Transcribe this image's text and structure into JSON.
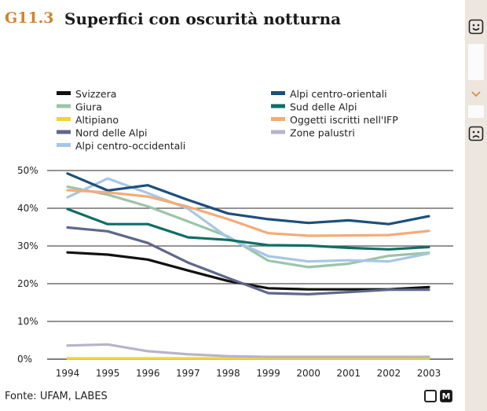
{
  "header": {
    "figure_id": "G11.3",
    "title": "Superfici con oscurità notturna"
  },
  "source": "Fonte: UFAM, LABES",
  "footer_icons": {
    "m_label": "M"
  },
  "side_panel": {
    "top_icon": "smiley-happy-icon",
    "mid_icon": "chevron-down-icon",
    "bottom_icon": "smiley-sad-icon"
  },
  "chart_data": {
    "type": "line",
    "x": [
      "1994",
      "1995",
      "1996",
      "1997",
      "1998",
      "1999",
      "2000",
      "2001",
      "2002",
      "2003"
    ],
    "ylim": [
      0,
      50
    ],
    "yticks": [
      "0%",
      "10%",
      "20%",
      "30%",
      "40%",
      "50%"
    ],
    "grid": true,
    "legend_placement": "top",
    "series": [
      {
        "name": "Svizzera",
        "color": "#111111",
        "values": [
          28.3,
          27.7,
          26.4,
          23.5,
          20.7,
          18.8,
          18.5,
          18.5,
          18.5,
          19.1
        ]
      },
      {
        "name": "Giura",
        "color": "#9cc4a8",
        "values": [
          45.7,
          43.6,
          40.5,
          36.5,
          32.5,
          26.1,
          24.4,
          25.3,
          27.4,
          28.2
        ]
      },
      {
        "name": "Altipiano",
        "color": "#f2d23a",
        "values": [
          0.2,
          0.2,
          0.2,
          0.2,
          0.2,
          0.2,
          0.2,
          0.2,
          0.2,
          0.2
        ]
      },
      {
        "name": "Nord delle Alpi",
        "color": "#5f6889",
        "values": [
          34.9,
          33.9,
          30.8,
          25.6,
          21.5,
          17.5,
          17.2,
          17.8,
          18.4,
          18.4
        ]
      },
      {
        "name": "Alpi centro-occidentali",
        "color": "#a7c6e6",
        "values": [
          42.9,
          47.9,
          44.0,
          39.9,
          32.2,
          27.3,
          25.9,
          26.2,
          25.9,
          28.0
        ]
      },
      {
        "name": "Alpi centro-orientali",
        "color": "#1d4f7a",
        "values": [
          49.2,
          44.7,
          46.1,
          42.2,
          38.6,
          37.1,
          36.1,
          36.8,
          35.8,
          37.9
        ]
      },
      {
        "name": "Sud delle Alpi",
        "color": "#0e6e66",
        "values": [
          39.8,
          35.8,
          35.8,
          32.3,
          31.6,
          30.2,
          30.1,
          29.5,
          29.1,
          29.7
        ]
      },
      {
        "name": "Oggetti iscritti nell'IFP",
        "color": "#f3ac78",
        "values": [
          44.8,
          44.2,
          43.1,
          40.4,
          37.1,
          33.4,
          32.7,
          32.8,
          32.9,
          34.0
        ]
      },
      {
        "name": "Zone palustri",
        "color": "#b8b3c8",
        "values": [
          3.6,
          3.9,
          2.1,
          1.3,
          0.8,
          0.6,
          0.6,
          0.6,
          0.6,
          0.6
        ]
      }
    ]
  }
}
